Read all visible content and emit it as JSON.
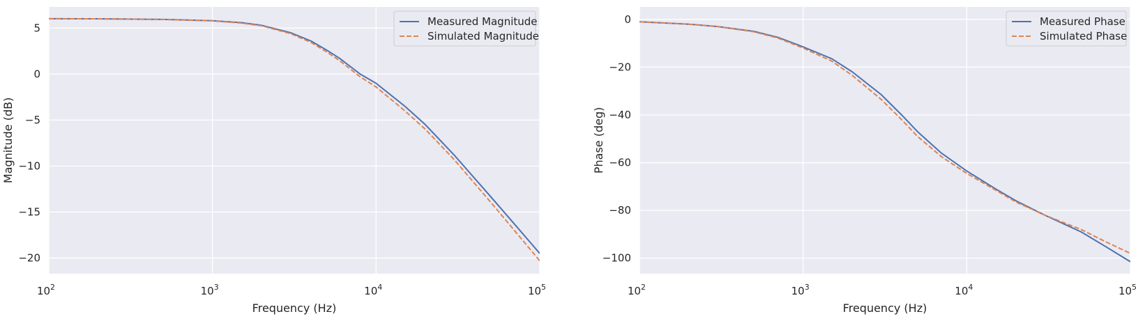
{
  "colors": {
    "measured": "#4c72b0",
    "simulated": "#dd8452",
    "plot_bg": "#eaeaf2",
    "grid": "#ffffff"
  },
  "chart_data": [
    {
      "type": "line",
      "x_scale": "log",
      "xlabel": "Frequency (Hz)",
      "ylabel": "Magnitude (dB)",
      "xlim": [
        100,
        100000
      ],
      "ylim": [
        -21.7,
        7.3
      ],
      "xticks": [
        100,
        1000,
        10000,
        100000
      ],
      "xtick_labels": [
        {
          "base": "10",
          "exp": "2"
        },
        {
          "base": "10",
          "exp": "3"
        },
        {
          "base": "10",
          "exp": "4"
        },
        {
          "base": "10",
          "exp": "5"
        }
      ],
      "yticks": [
        5,
        0,
        -5,
        -10,
        -15,
        -20
      ],
      "ytick_labels": [
        "5",
        "0",
        "−5",
        "−10",
        "−15",
        "−20"
      ],
      "grid": true,
      "legend": "top-right",
      "series": [
        {
          "name": "Measured Magnitude",
          "style": "solid",
          "x": [
            100,
            200,
            500,
            1000,
            1500,
            2000,
            3000,
            4000,
            5000,
            6000,
            8000,
            10000,
            15000,
            20000,
            30000,
            50000,
            70000,
            100000
          ],
          "y": [
            6.02,
            6.01,
            5.95,
            5.8,
            5.6,
            5.3,
            4.5,
            3.6,
            2.6,
            1.7,
            0.0,
            -1.0,
            -3.5,
            -5.5,
            -8.8,
            -13.3,
            -16.3,
            -19.5
          ]
        },
        {
          "name": "Simulated Magnitude",
          "style": "dashed",
          "x": [
            100,
            200,
            500,
            1000,
            1500,
            2000,
            3000,
            4000,
            5000,
            6000,
            8000,
            10000,
            15000,
            20000,
            30000,
            50000,
            70000,
            100000
          ],
          "y": [
            6.02,
            6.01,
            5.94,
            5.79,
            5.55,
            5.25,
            4.4,
            3.45,
            2.4,
            1.45,
            -0.3,
            -1.4,
            -4.0,
            -6.0,
            -9.3,
            -13.9,
            -17.0,
            -20.3
          ]
        }
      ]
    },
    {
      "type": "line",
      "x_scale": "log",
      "xlabel": "Frequency (Hz)",
      "ylabel": "Phase (deg)",
      "xlim": [
        100,
        100000
      ],
      "ylim": [
        -106.5,
        5.2
      ],
      "xticks": [
        100,
        1000,
        10000,
        100000
      ],
      "xtick_labels": [
        {
          "base": "10",
          "exp": "2"
        },
        {
          "base": "10",
          "exp": "3"
        },
        {
          "base": "10",
          "exp": "4"
        },
        {
          "base": "10",
          "exp": "5"
        }
      ],
      "yticks": [
        0,
        -20,
        -40,
        -60,
        -80,
        -100
      ],
      "ytick_labels": [
        "0",
        "−20",
        "−40",
        "−60",
        "−80",
        "−100"
      ],
      "grid": true,
      "legend": "top-right",
      "series": [
        {
          "name": "Measured Phase",
          "style": "solid",
          "x": [
            100,
            200,
            300,
            500,
            700,
            1000,
            1500,
            2000,
            3000,
            4000,
            5000,
            7000,
            10000,
            15000,
            20000,
            30000,
            50000,
            70000,
            100000
          ],
          "y": [
            -1.0,
            -2.0,
            -3.0,
            -5.0,
            -7.5,
            -11.5,
            -16.5,
            -22.0,
            -31.5,
            -40.0,
            -47.0,
            -56.0,
            -63.5,
            -71.0,
            -76.0,
            -82.0,
            -89.0,
            -95.0,
            -101.5
          ]
        },
        {
          "name": "Simulated Phase",
          "style": "dashed",
          "x": [
            100,
            200,
            300,
            500,
            700,
            1000,
            1500,
            2000,
            3000,
            4000,
            5000,
            7000,
            10000,
            15000,
            20000,
            30000,
            50000,
            70000,
            100000
          ],
          "y": [
            -1.0,
            -2.0,
            -3.0,
            -5.2,
            -7.8,
            -12.0,
            -17.5,
            -23.5,
            -33.5,
            -42.0,
            -49.0,
            -57.5,
            -64.5,
            -71.5,
            -76.5,
            -82.0,
            -88.0,
            -93.0,
            -98.0
          ]
        }
      ]
    }
  ]
}
